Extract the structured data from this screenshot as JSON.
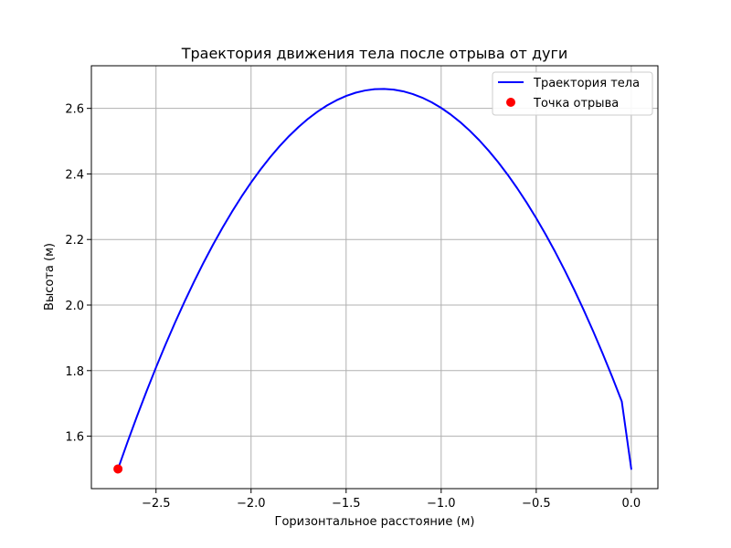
{
  "chart_data": {
    "type": "line",
    "title": "Траектория движения тела после отрыва от дуги",
    "xlabel": "Горизонтальное расстояние (м)",
    "ylabel": "Высота (м)",
    "xlim": [
      -2.84,
      0.14
    ],
    "ylim": [
      1.44,
      2.73
    ],
    "grid": true,
    "legend_position": "top-right",
    "x_ticks": [
      {
        "value": -2.5,
        "label": "−2.5"
      },
      {
        "value": -2.0,
        "label": "−2.0"
      },
      {
        "value": -1.5,
        "label": "−1.5"
      },
      {
        "value": -1.0,
        "label": "−1.0"
      },
      {
        "value": -0.5,
        "label": "−0.5"
      },
      {
        "value": 0.0,
        "label": "0.0"
      }
    ],
    "y_ticks": [
      {
        "value": 1.6,
        "label": "1.6"
      },
      {
        "value": 1.8,
        "label": "1.8"
      },
      {
        "value": 2.0,
        "label": "2.0"
      },
      {
        "value": 2.2,
        "label": "2.2"
      },
      {
        "value": 2.4,
        "label": "2.4"
      },
      {
        "value": 2.6,
        "label": "2.6"
      }
    ],
    "series": [
      {
        "name": "Траектория тела",
        "kind": "line",
        "color": "#0000ff",
        "x": [
          -2.7,
          -2.65,
          -2.6,
          -2.55,
          -2.5,
          -2.45,
          -2.4,
          -2.35,
          -2.3,
          -2.25,
          -2.2,
          -2.15,
          -2.1,
          -2.05,
          -2.0,
          -1.95,
          -1.9,
          -1.85,
          -1.8,
          -1.75,
          -1.7,
          -1.65,
          -1.6,
          -1.55,
          -1.5,
          -1.45,
          -1.4,
          -1.35,
          -1.3,
          -1.25,
          -1.2,
          -1.15,
          -1.1,
          -1.05,
          -1.0,
          -0.95,
          -0.9,
          -0.85,
          -0.8,
          -0.75,
          -0.7,
          -0.65,
          -0.6,
          -0.55,
          -0.5,
          -0.45,
          -0.4,
          -0.35,
          -0.3,
          -0.25,
          -0.2,
          -0.15,
          -0.1,
          -0.05,
          0.0
        ],
        "y": [
          1.5,
          1.5819,
          1.6608,
          1.7367,
          1.8097,
          1.8796,
          1.9465,
          2.0104,
          2.0713,
          2.1293,
          2.1842,
          2.2361,
          2.285,
          2.3309,
          2.3739,
          2.4138,
          2.4507,
          2.4846,
          2.5155,
          2.5434,
          2.5683,
          2.5902,
          2.6091,
          2.625,
          2.6379,
          2.6478,
          2.6546,
          2.6585,
          2.6594,
          2.6572,
          2.6521,
          2.6439,
          2.6328,
          2.6186,
          2.6015,
          2.5813,
          2.5582,
          2.532,
          2.5029,
          2.4707,
          2.4356,
          2.3975,
          2.3563,
          2.3122,
          2.2651,
          2.215,
          2.1619,
          2.1058,
          2.0467,
          1.9846,
          1.9195,
          1.8514,
          1.7803,
          1.7062,
          1.5
        ]
      },
      {
        "name": "Точка отрыва",
        "kind": "scatter",
        "color": "#ff0000",
        "points": [
          {
            "x": -2.7,
            "y": 1.5
          }
        ]
      }
    ]
  }
}
